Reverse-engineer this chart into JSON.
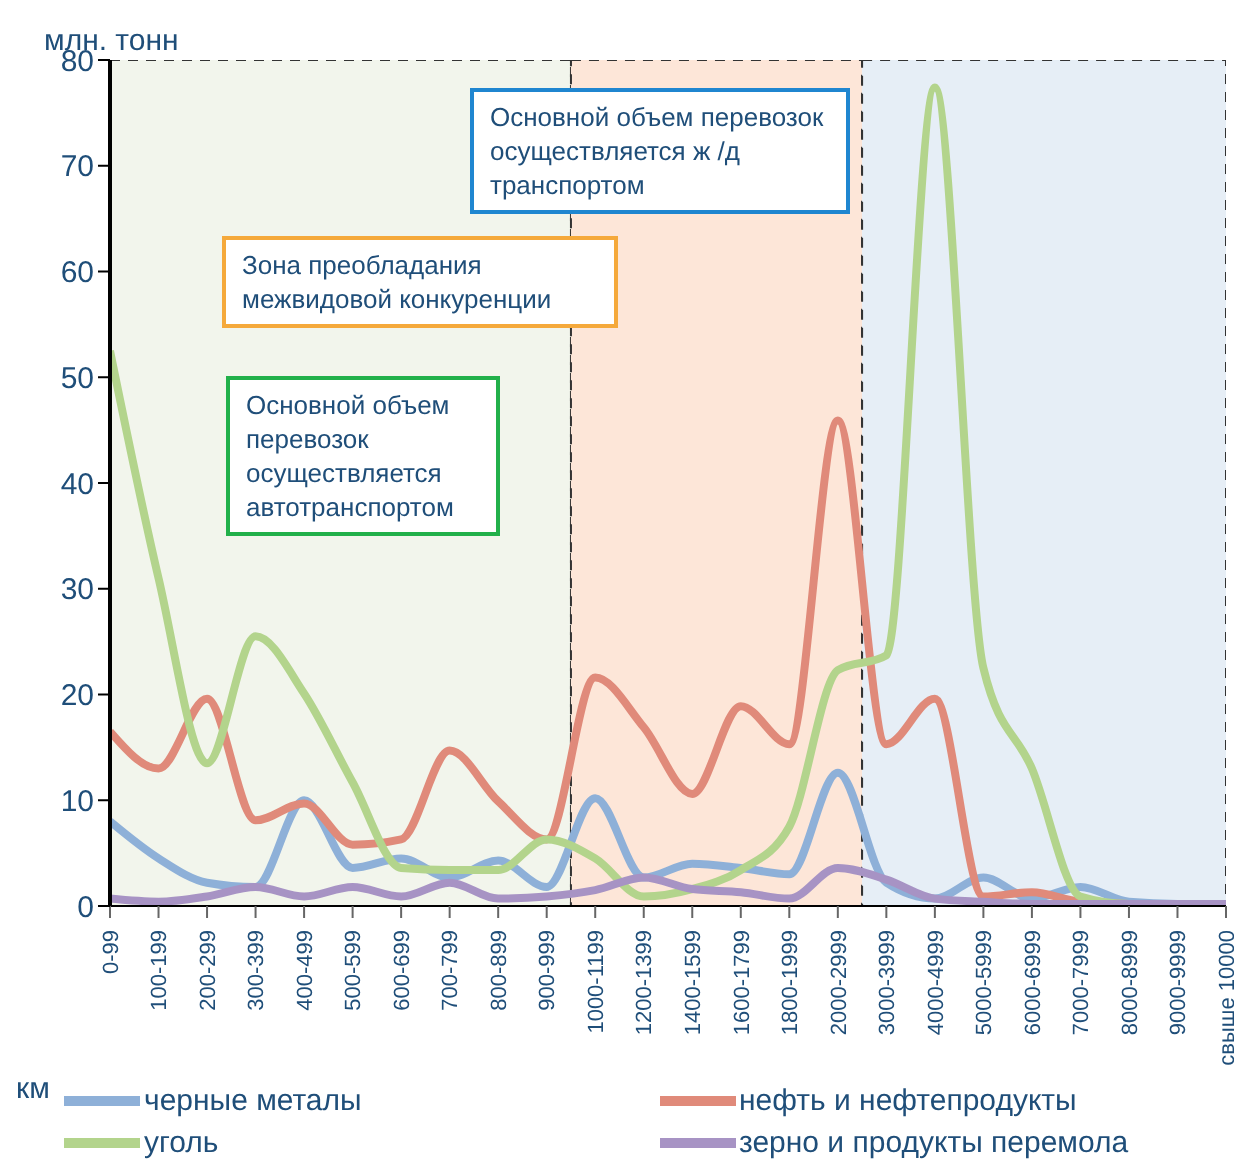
{
  "chart_data": {
    "type": "line",
    "ylabel": "млн. тонн",
    "xlabel": "км",
    "categories": [
      "0-99",
      "100-199",
      "200-299",
      "300-399",
      "400-499",
      "500-599",
      "600-699",
      "700-799",
      "800-899",
      "900-999",
      "1000-1199",
      "1200-1399",
      "1400-1599",
      "1600-1799",
      "1800-1999",
      "2000-2999",
      "3000-3999",
      "4000-4999",
      "5000-5999",
      "6000-6999",
      "7000-7999",
      "8000-8999",
      "9000-9999",
      "свыше 10000"
    ],
    "series": [
      {
        "name": "черные металы",
        "color": "#8eb0d8",
        "values": [
          8,
          4.5,
          2.2,
          1.8,
          10,
          3.6,
          4.5,
          2.7,
          4.3,
          1.8,
          10.2,
          2.7,
          4,
          3.6,
          3,
          12.6,
          2.2,
          0.7,
          2.7,
          0.7,
          1.8,
          0.4,
          0.2,
          0.2
        ]
      },
      {
        "name": "нефть и нефтепродукты",
        "color": "#e08a7a",
        "values": [
          16.5,
          13,
          19.6,
          8.1,
          9.7,
          5.8,
          6.3,
          14.7,
          9.9,
          6.3,
          21.6,
          16.9,
          10.6,
          18.9,
          15.3,
          45.9,
          15.3,
          19.6,
          0.9,
          1.3,
          0.4,
          0.2,
          null,
          null
        ]
      },
      {
        "name": "уголь",
        "color": "#b3d48c",
        "values": [
          52.5,
          31,
          13.5,
          25.5,
          20.1,
          11.7,
          3.6,
          3.4,
          3.4,
          6.3,
          4.5,
          0.9,
          1.6,
          3.4,
          7.5,
          22.3,
          23.7,
          77.4,
          22.5,
          13,
          0.9,
          0.2,
          0.2,
          null
        ]
      },
      {
        "name": "зерно и продукты перемола",
        "color": "#a793c4",
        "values": [
          0.7,
          0.4,
          0.9,
          1.8,
          0.9,
          1.8,
          0.9,
          2.2,
          0.7,
          0.9,
          1.5,
          2.7,
          1.6,
          1.3,
          0.7,
          3.6,
          2.5,
          0.7,
          0.4,
          0.2,
          0.2,
          0.2,
          0.2,
          0.2
        ]
      }
    ],
    "ylim": [
      0,
      80
    ],
    "yticks": [
      0,
      10,
      20,
      30,
      40,
      50,
      60,
      70,
      80
    ],
    "legend": "bottom",
    "marker": "none",
    "line_style": "solid",
    "bands": [
      {
        "axis": "x",
        "from": "0-99",
        "to": "900-999",
        "label": "Основной объем перевозок осуществляется автотранспортом",
        "color": "#f2f5ec"
      },
      {
        "axis": "x",
        "from": "1000-1199",
        "to": "2000-2999",
        "label": "Зона преобладания межвидовой конкуренции",
        "color": "#fde6d8"
      },
      {
        "axis": "x",
        "from": "3000-3999",
        "to": "свыше 10000",
        "label": "Основной объем перевозок осуществляется ж  /д транспортом",
        "color": "#e6eef6"
      }
    ]
  }
}
